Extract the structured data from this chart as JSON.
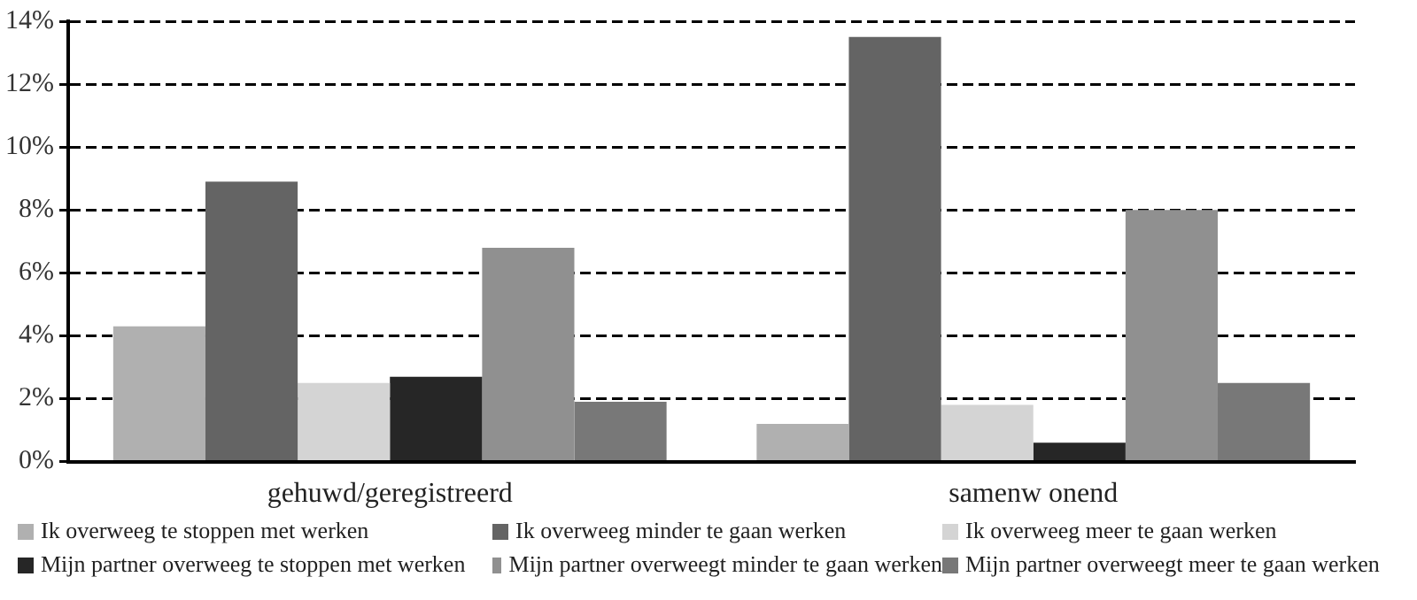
{
  "chart_data": {
    "type": "bar",
    "categories": [
      "gehuwd/geregistreerd",
      "samenw onend"
    ],
    "series": [
      {
        "name": "Ik overweeg te stoppen met werken",
        "color": "#b0b0b0",
        "values": [
          4.3,
          1.2
        ]
      },
      {
        "name": "Ik overweeg minder te gaan werken",
        "color": "#646464",
        "values": [
          8.9,
          13.5
        ]
      },
      {
        "name": "Ik overweeg meer te gaan werken",
        "color": "#d4d4d4",
        "values": [
          2.5,
          1.8
        ]
      },
      {
        "name": "Mijn partner overweeg te stoppen met werken",
        "color": "#262626",
        "values": [
          2.7,
          0.6
        ]
      },
      {
        "name": "Mijn partner overweegt minder te gaan werken",
        "color": "#909090",
        "values": [
          6.8,
          8.0
        ]
      },
      {
        "name": "Mijn partner overweegt meer te gaan werken",
        "color": "#787878",
        "values": [
          1.9,
          2.5
        ]
      }
    ],
    "ylim": [
      0,
      14
    ],
    "yticks": [
      {
        "value": 0,
        "label": "0%"
      },
      {
        "value": 2,
        "label": "2%"
      },
      {
        "value": 4,
        "label": "4%"
      },
      {
        "value": 6,
        "label": "6%"
      },
      {
        "value": 8,
        "label": "8%"
      },
      {
        "value": 10,
        "label": "10%"
      },
      {
        "value": 12,
        "label": "12%"
      },
      {
        "value": 14,
        "label": "14%"
      }
    ],
    "grid": "y",
    "legend": "bottom",
    "line_style": "dashed"
  }
}
